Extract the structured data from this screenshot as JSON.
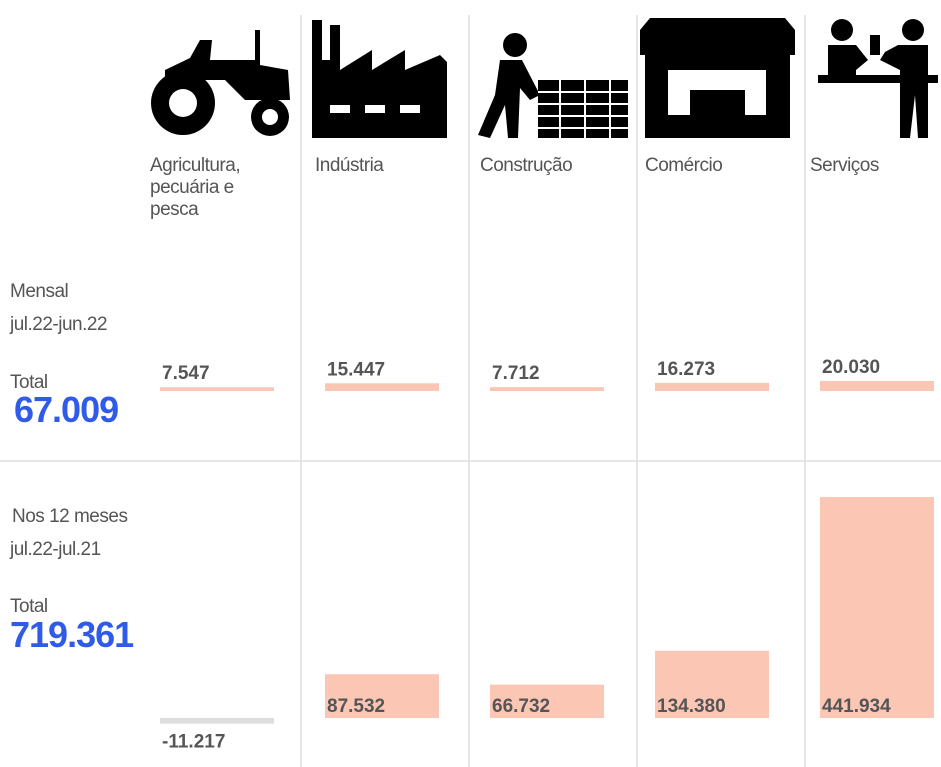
{
  "chart_data": {
    "type": "bar",
    "categories": [
      "Agricultura, pecuária e pesca",
      "Indústria",
      "Construção",
      "Comércio",
      "Serviços"
    ],
    "ylim": [
      0,
      450000
    ],
    "negative_color": "#dddddd",
    "series": [
      {
        "name": "Mensal",
        "period": "jul.22-jun.22",
        "total_label": "Total",
        "total": {
          "value": 67009,
          "label": "67.009"
        },
        "color": "#fcc6b4",
        "values": [
          7547,
          15447,
          7712,
          16273,
          20030
        ],
        "value_labels": [
          "7.547",
          "15.447",
          "7.712",
          "16.273",
          "20.030"
        ]
      },
      {
        "name": "Nos 12 meses",
        "period": "jul.22-jul.21",
        "total_label": "Total",
        "total": {
          "value": 719361,
          "label": "719.361"
        },
        "color": "#fcc6b4",
        "values": [
          -11217,
          87532,
          66732,
          134380,
          441934
        ],
        "value_labels": [
          "-11.217",
          "87.532",
          "66.732",
          "134.380",
          "441.934"
        ]
      }
    ]
  }
}
